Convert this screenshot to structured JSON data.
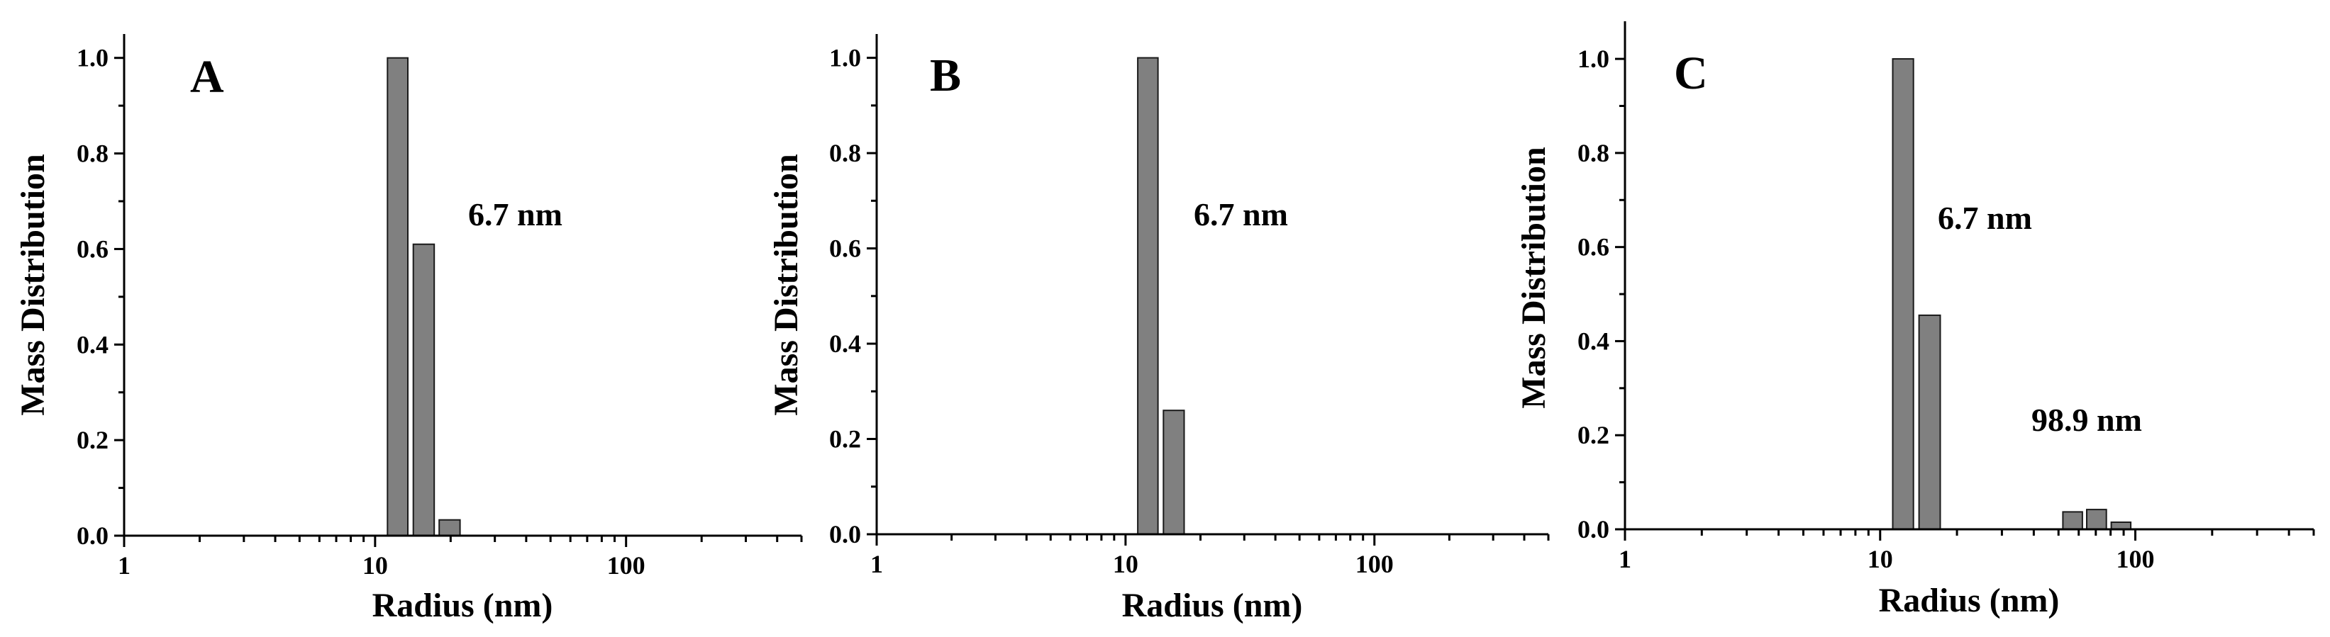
{
  "figure": {
    "colors": {
      "bar_fill": "#808080",
      "bar_stroke": "#1a1a1a",
      "axis": "#000000"
    }
  },
  "chart_data": [
    {
      "type": "bar",
      "panel": "A",
      "xlabel": "Radius (nm)",
      "ylabel": "Mass Distribution",
      "xscale": "log",
      "xlim": [
        1,
        500
      ],
      "ylim": [
        0,
        1.05
      ],
      "x_ticks": [
        "1",
        "10",
        "100"
      ],
      "y_ticks": [
        "0.0",
        "0.2",
        "0.4",
        "0.6",
        "0.8",
        "1.0"
      ],
      "bins": [
        {
          "x0": 11.2,
          "x1": 13.5,
          "value": 1.0
        },
        {
          "x0": 14.2,
          "x1": 17.2,
          "value": 0.61
        },
        {
          "x0": 18.0,
          "x1": 21.8,
          "value": 0.033
        }
      ],
      "annotations": [
        "6.7 nm"
      ],
      "grid": false
    },
    {
      "type": "bar",
      "panel": "B",
      "xlabel": "Radius (nm)",
      "ylabel": "Mass Distribution",
      "xscale": "log",
      "xlim": [
        1,
        500
      ],
      "ylim": [
        0,
        1.05
      ],
      "x_ticks": [
        "1",
        "10",
        "100"
      ],
      "y_ticks": [
        "0.0",
        "0.2",
        "0.4",
        "0.6",
        "0.8",
        "1.0"
      ],
      "bins": [
        {
          "x0": 11.2,
          "x1": 13.5,
          "value": 1.0
        },
        {
          "x0": 14.2,
          "x1": 17.2,
          "value": 0.26
        }
      ],
      "annotations": [
        "6.7 nm"
      ],
      "grid": false
    },
    {
      "type": "bar",
      "panel": "C",
      "xlabel": "Radius (nm)",
      "ylabel": "Mass Distribution",
      "xscale": "log",
      "xlim": [
        1,
        500
      ],
      "ylim": [
        0,
        1.08
      ],
      "x_ticks": [
        "1",
        "10",
        "100"
      ],
      "y_ticks": [
        "0.0",
        "0.2",
        "0.4",
        "0.6",
        "0.8",
        "1.0"
      ],
      "bins": [
        {
          "x0": 11.2,
          "x1": 13.5,
          "value": 1.0
        },
        {
          "x0": 14.2,
          "x1": 17.2,
          "value": 0.455
        },
        {
          "x0": 52.0,
          "x1": 62.0,
          "value": 0.037
        },
        {
          "x0": 64.5,
          "x1": 77.0,
          "value": 0.042
        },
        {
          "x0": 80.5,
          "x1": 96.0,
          "value": 0.015
        }
      ],
      "annotations": [
        "6.7 nm",
        "98.9 nm"
      ],
      "grid": false
    }
  ]
}
